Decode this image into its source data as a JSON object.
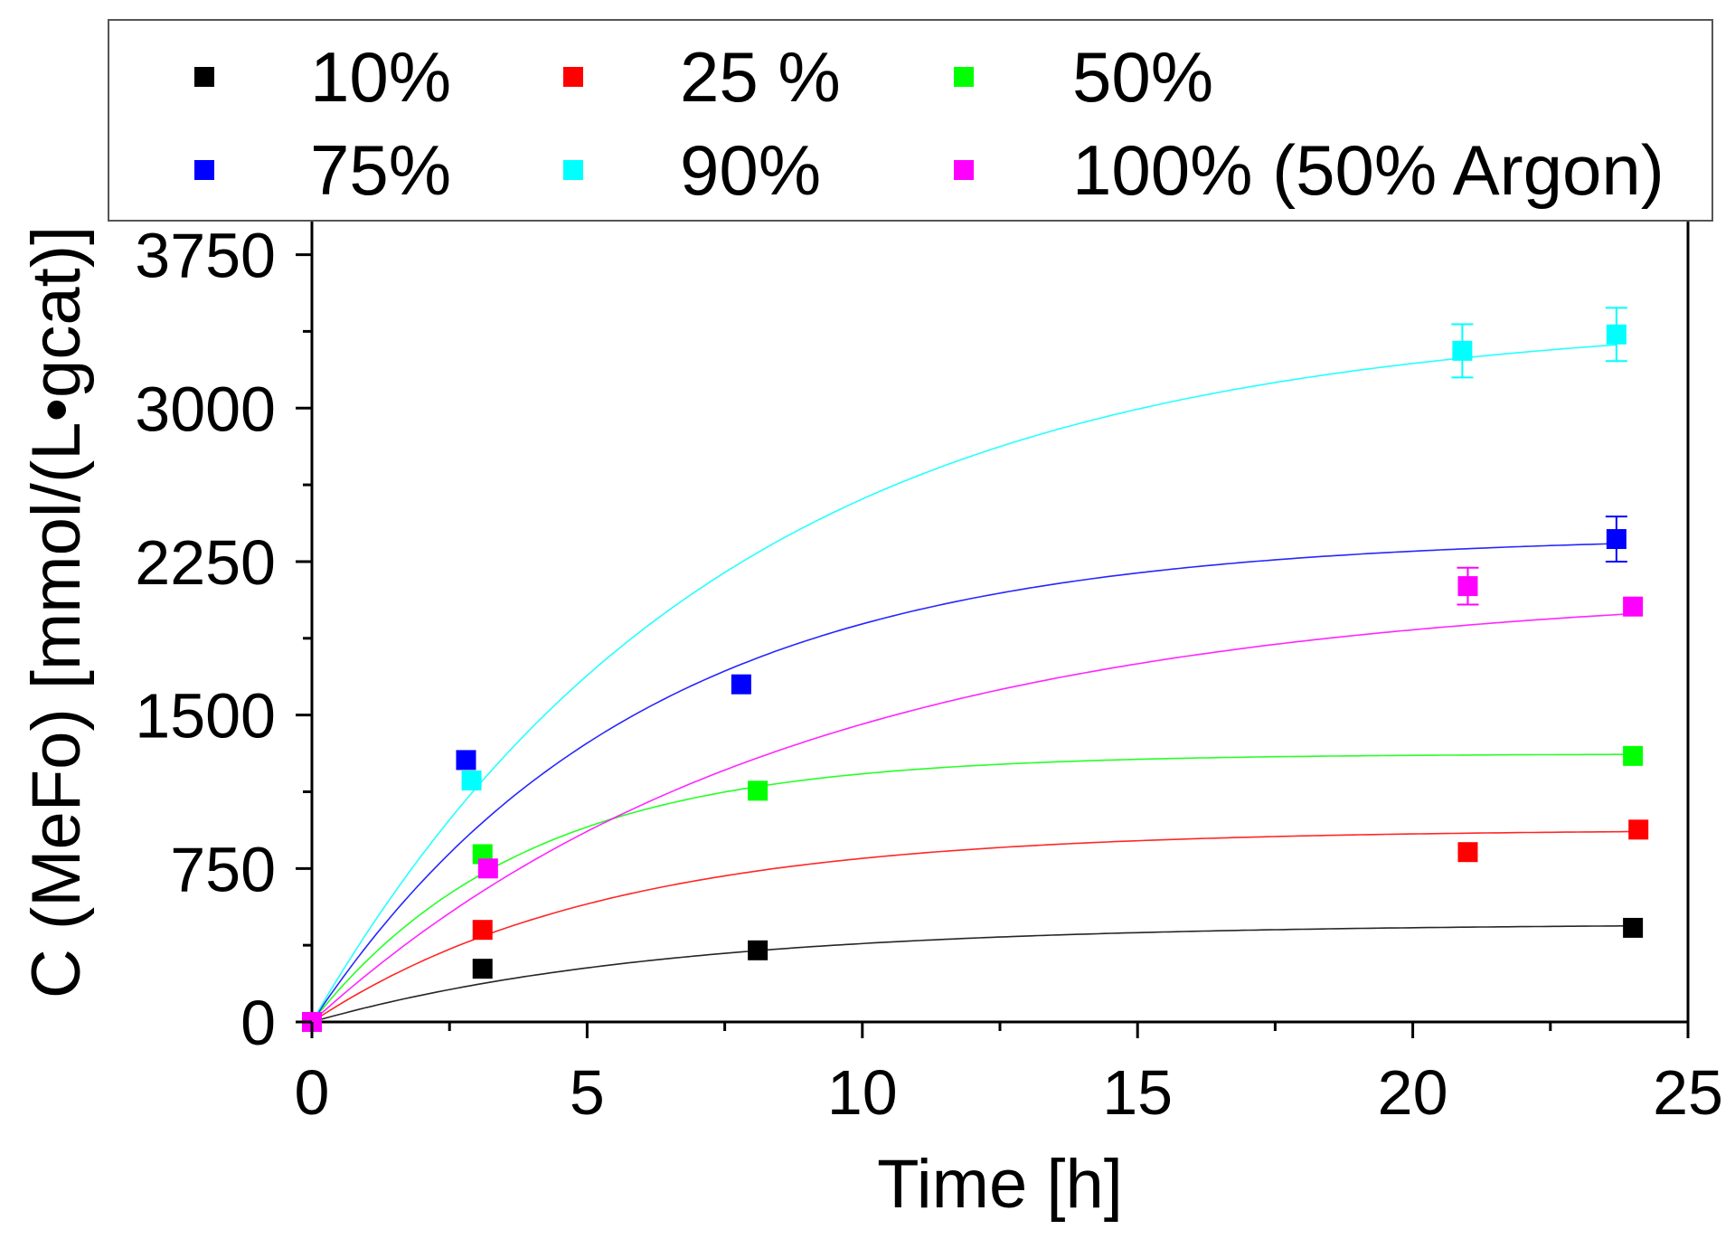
{
  "chart_data": {
    "type": "scatter",
    "title": "",
    "xlabel": "Time [h]",
    "ylabel": "C (MeFo) [mmol/(L•gcat)]",
    "xlim": [
      0,
      25
    ],
    "ylim": [
      0,
      4000
    ],
    "xticks": [
      0,
      5,
      10,
      15,
      20,
      25
    ],
    "xtick_labels": [
      "0",
      "5",
      "10",
      "15",
      "20",
      "25"
    ],
    "yticks": [
      0,
      750,
      1500,
      2250,
      3000,
      3750
    ],
    "ytick_labels": [
      "0",
      "750",
      "1500",
      "2250",
      "3000",
      "3750"
    ],
    "grid": false,
    "legend_position": "top",
    "series": [
      {
        "name": "10%",
        "color": "#000000",
        "x": [
          0,
          3.1,
          8.1,
          24.0
        ],
        "y": [
          0,
          260,
          350,
          460
        ],
        "err": [
          0,
          0,
          0,
          0
        ],
        "fit": {
          "a": 480,
          "k": 0.16
        }
      },
      {
        "name": "25 %",
        "color": "#ff0000",
        "x": [
          0,
          3.1,
          21.0,
          24.1
        ],
        "y": [
          0,
          450,
          830,
          940
        ],
        "err": [
          0,
          0,
          0,
          0
        ],
        "fit": {
          "a": 940,
          "k": 0.19
        }
      },
      {
        "name": "50%",
        "color": "#00ff00",
        "x": [
          0,
          3.1,
          8.1,
          24.0
        ],
        "y": [
          0,
          820,
          1130,
          1300
        ],
        "err": [
          0,
          0,
          0,
          0
        ],
        "fit": {
          "a": 1310,
          "k": 0.26
        }
      },
      {
        "name": "75%",
        "color": "#0000ff",
        "x": [
          0,
          2.8,
          7.8,
          23.7
        ],
        "y": [
          0,
          1280,
          1650,
          2360
        ],
        "err": [
          0,
          0,
          0,
          110
        ],
        "fit": {
          "a": 2380,
          "k": 0.17
        }
      },
      {
        "name": "90%",
        "color": "#00ffff",
        "x": [
          0,
          2.9,
          20.9,
          23.7
        ],
        "y": [
          0,
          1180,
          3280,
          3360
        ],
        "err": [
          0,
          0,
          130,
          130
        ],
        "fit": {
          "a": 3450,
          "k": 0.135
        }
      },
      {
        "name": "100% (50% Argon)",
        "color": "#ff00ff",
        "x": [
          0,
          3.2,
          21.0,
          24.0
        ],
        "y": [
          0,
          750,
          2130,
          2030
        ],
        "err": [
          0,
          0,
          90,
          0
        ],
        "fit": {
          "a": 2130,
          "k": 0.115
        }
      }
    ]
  }
}
